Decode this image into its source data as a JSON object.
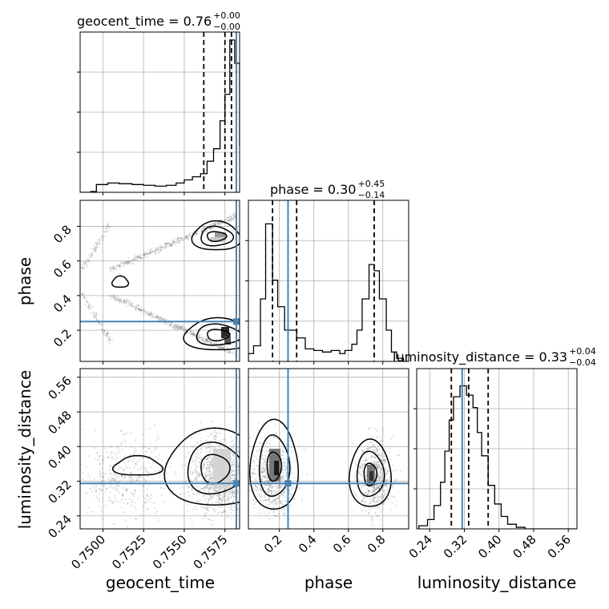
{
  "chart_data": {
    "type": "corner",
    "grid": true,
    "colors": {
      "truth": "#4682b4",
      "hist": "#000000",
      "samples": "#444444"
    },
    "parameters": [
      {
        "name": "geocent_time",
        "axis_label": "geocent_time",
        "ticks": [
          "0.7500",
          "0.7525",
          "0.7550",
          "0.7575"
        ],
        "tick_values": [
          0.75,
          0.7525,
          0.755,
          0.7575
        ],
        "range": [
          0.7486,
          0.7584
        ],
        "truth": 0.7582,
        "quantiles": [
          0.7562,
          0.7575,
          0.7579
        ]
      },
      {
        "name": "phase",
        "axis_label": "phase",
        "ticks": [
          "0.2",
          "0.4",
          "0.6",
          "0.8"
        ],
        "tick_values": [
          0.2,
          0.4,
          0.6,
          0.8
        ],
        "range": [
          0.02,
          0.95
        ],
        "truth": 0.25,
        "quantiles": [
          0.16,
          0.3,
          0.75
        ]
      },
      {
        "name": "luminosity_distance",
        "axis_label": "luminosity_distance",
        "ticks": [
          "0.24",
          "0.32",
          "0.40",
          "0.48",
          "0.56"
        ],
        "tick_values": [
          0.24,
          0.32,
          0.4,
          0.48,
          0.56
        ],
        "range": [
          0.21,
          0.58
        ],
        "truth": 0.315,
        "quantiles": [
          0.29,
          0.33,
          0.375
        ]
      }
    ],
    "titles": [
      {
        "text": "geocent_time = 0.76",
        "sup": "+0.00",
        "sub": "−0.00"
      },
      {
        "text": "phase = 0.30",
        "sup": "+0.45",
        "sub": "−0.14"
      },
      {
        "text": "luminosity_distance = 0.33",
        "sup": "+0.04",
        "sub": "−0.04"
      }
    ],
    "histograms": {
      "geocent_time": [
        [
          0.7486,
          0
        ],
        [
          0.74925,
          0.005
        ],
        [
          0.7496,
          0.05
        ],
        [
          0.7503,
          0.06
        ],
        [
          0.751,
          0.055
        ],
        [
          0.7518,
          0.05
        ],
        [
          0.7525,
          0.045
        ],
        [
          0.7532,
          0.04
        ],
        [
          0.7539,
          0.045
        ],
        [
          0.7545,
          0.06
        ],
        [
          0.755,
          0.08
        ],
        [
          0.7555,
          0.1
        ],
        [
          0.756,
          0.12
        ],
        [
          0.7564,
          0.2
        ],
        [
          0.7568,
          0.28
        ],
        [
          0.7572,
          0.46
        ],
        [
          0.7575,
          0.63
        ],
        [
          0.7578,
          0.98
        ],
        [
          0.7581,
          0.83
        ],
        [
          0.7584,
          0.3
        ]
      ],
      "phase": [
        [
          0.02,
          0.05
        ],
        [
          0.05,
          0.1
        ],
        [
          0.09,
          0.4
        ],
        [
          0.12,
          0.88
        ],
        [
          0.16,
          0.52
        ],
        [
          0.19,
          0.35
        ],
        [
          0.23,
          0.2
        ],
        [
          0.26,
          0.2
        ],
        [
          0.3,
          0.15
        ],
        [
          0.35,
          0.08
        ],
        [
          0.4,
          0.07
        ],
        [
          0.45,
          0.06
        ],
        [
          0.5,
          0.07
        ],
        [
          0.55,
          0.05
        ],
        [
          0.58,
          0.07
        ],
        [
          0.62,
          0.11
        ],
        [
          0.65,
          0.2
        ],
        [
          0.68,
          0.4
        ],
        [
          0.72,
          0.62
        ],
        [
          0.75,
          0.58
        ],
        [
          0.78,
          0.4
        ],
        [
          0.82,
          0.2
        ],
        [
          0.85,
          0.06
        ],
        [
          0.88,
          0.02
        ],
        [
          0.92,
          0.0
        ]
      ],
      "luminosity_distance": [
        [
          0.215,
          0.02
        ],
        [
          0.235,
          0.06
        ],
        [
          0.25,
          0.15
        ],
        [
          0.265,
          0.3
        ],
        [
          0.275,
          0.5
        ],
        [
          0.285,
          0.7
        ],
        [
          0.295,
          0.85
        ],
        [
          0.31,
          0.92
        ],
        [
          0.325,
          0.86
        ],
        [
          0.34,
          0.78
        ],
        [
          0.35,
          0.62
        ],
        [
          0.36,
          0.47
        ],
        [
          0.375,
          0.28
        ],
        [
          0.39,
          0.16
        ],
        [
          0.405,
          0.08
        ],
        [
          0.42,
          0.03
        ],
        [
          0.44,
          0.01
        ],
        [
          0.46,
          0.0
        ]
      ]
    }
  }
}
